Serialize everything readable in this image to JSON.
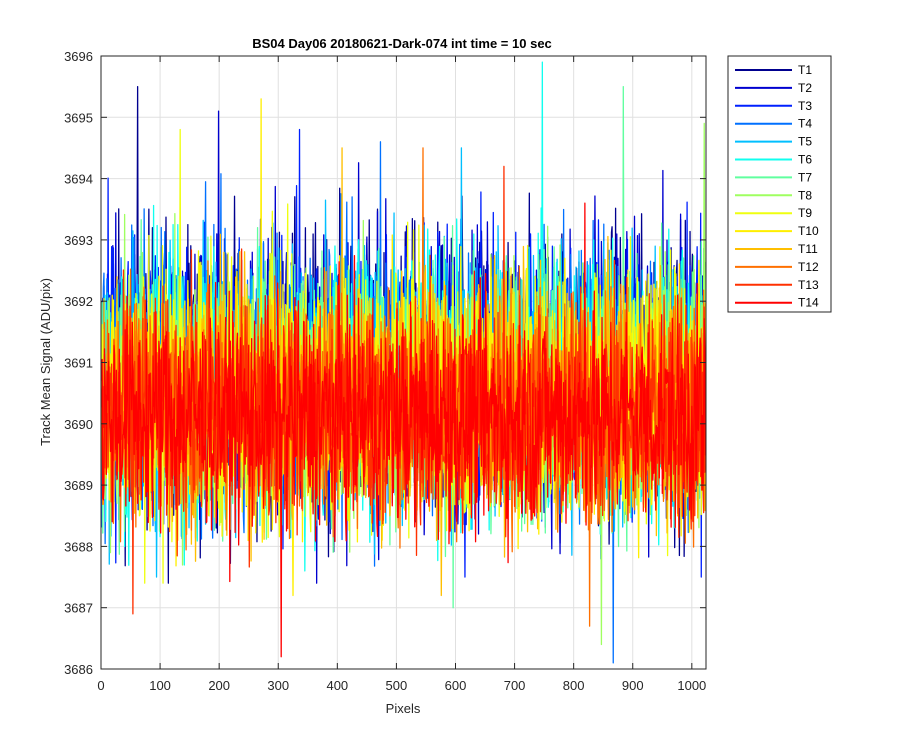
{
  "chart_data": {
    "type": "line",
    "title": "BS04 Day06 20180621-Dark-074 int time = 10 sec",
    "xlabel": "Pixels",
    "ylabel": "Track Mean Signal (ADU/pix)",
    "xlim": [
      0,
      1024
    ],
    "ylim": [
      3686,
      3696
    ],
    "xticks": [
      0,
      100,
      200,
      300,
      400,
      500,
      600,
      700,
      800,
      900,
      1000
    ],
    "yticks": [
      3686,
      3687,
      3688,
      3689,
      3690,
      3691,
      3692,
      3693,
      3694,
      3695,
      3696
    ],
    "grid": true,
    "legend_position": "outside-top-right",
    "n_points": 1024,
    "series": [
      {
        "name": "T1",
        "color": "#00008F",
        "mean": 3690.8,
        "noise_amplitude": 1.2,
        "min": 3687.4,
        "max": 3695.5
      },
      {
        "name": "T2",
        "color": "#0000CF",
        "mean": 3690.8,
        "noise_amplitude": 1.2,
        "min": 3687.4,
        "max": 3695.1
      },
      {
        "name": "T3",
        "color": "#0020FF",
        "mean": 3690.8,
        "noise_amplitude": 1.15,
        "min": 3687.5,
        "max": 3694.8
      },
      {
        "name": "T4",
        "color": "#0070FF",
        "mean": 3690.7,
        "noise_amplitude": 1.15,
        "min": 3686.1,
        "max": 3694.6
      },
      {
        "name": "T5",
        "color": "#00BFFF",
        "mean": 3690.7,
        "noise_amplitude": 1.1,
        "min": 3687.5,
        "max": 3694.5
      },
      {
        "name": "T6",
        "color": "#10FFEF",
        "mean": 3690.6,
        "noise_amplitude": 1.1,
        "min": 3687.6,
        "max": 3695.9
      },
      {
        "name": "T7",
        "color": "#60FF9F",
        "mean": 3690.6,
        "noise_amplitude": 1.1,
        "min": 3687.0,
        "max": 3695.5
      },
      {
        "name": "T8",
        "color": "#9FFF60",
        "mean": 3690.5,
        "noise_amplitude": 1.05,
        "min": 3686.4,
        "max": 3694.9
      },
      {
        "name": "T9",
        "color": "#EFFF10",
        "mean": 3690.5,
        "noise_amplitude": 1.05,
        "min": 3687.4,
        "max": 3694.8
      },
      {
        "name": "T10",
        "color": "#FFEF00",
        "mean": 3690.4,
        "noise_amplitude": 1.0,
        "min": 3687.2,
        "max": 3695.3
      },
      {
        "name": "T11",
        "color": "#FFBF00",
        "mean": 3690.4,
        "noise_amplitude": 1.0,
        "min": 3687.2,
        "max": 3694.5
      },
      {
        "name": "T12",
        "color": "#FF7000",
        "mean": 3690.3,
        "noise_amplitude": 0.95,
        "min": 3686.7,
        "max": 3694.5
      },
      {
        "name": "T13",
        "color": "#FF3000",
        "mean": 3690.2,
        "noise_amplitude": 0.95,
        "min": 3686.9,
        "max": 3694.2
      },
      {
        "name": "T14",
        "color": "#FF0000",
        "mean": 3690.1,
        "noise_amplitude": 0.9,
        "min": 3686.2,
        "max": 3693.6
      }
    ]
  }
}
